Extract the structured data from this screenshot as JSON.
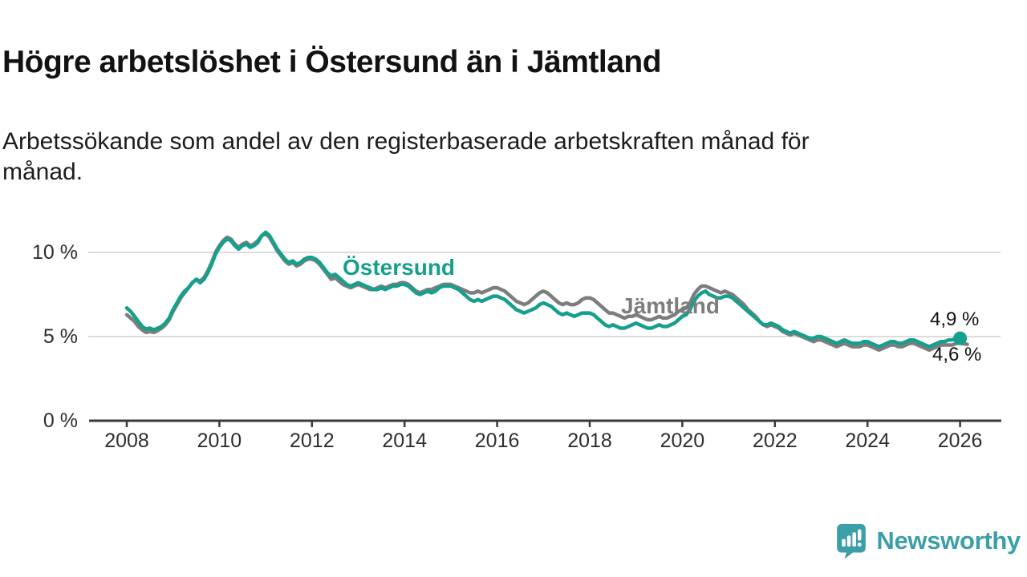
{
  "header": {
    "title": "Högre arbetslöshet i Östersund än i Jämtland",
    "subtitle": "Arbetssökande som andel av den registerbaserade arbetskraften månad för månad."
  },
  "chart_data": {
    "type": "line",
    "title": "Högre arbetslöshet i Östersund än i Jämtland",
    "subtitle": "Arbetssökande som andel av den registerbaserade arbetskraften månad för månad.",
    "frequency": "monthly",
    "x_start": "2008-01",
    "x_end": "2026-01",
    "x_ticks": [
      2008,
      2010,
      2012,
      2014,
      2016,
      2018,
      2020,
      2022,
      2024,
      2026
    ],
    "y_ticks": [
      {
        "value": 0,
        "label": "0 %"
      },
      {
        "value": 5,
        "label": "5 %"
      },
      {
        "value": 10,
        "label": "10 %"
      }
    ],
    "ylim": [
      0,
      12.5
    ],
    "grid": "horizontal",
    "colors": {
      "grid": "#dcdcdc",
      "axis": "#3a3a3a",
      "tick_text": "#2e2e2e"
    },
    "series": [
      {
        "name": "Jämtland",
        "color": "#7d7d7d",
        "end_dot": false,
        "last_value_label": "4,6 %",
        "values": [
          6.3,
          6.1,
          5.9,
          5.6,
          5.4,
          5.25,
          5.3,
          5.25,
          5.35,
          5.5,
          5.7,
          6.0,
          6.5,
          6.9,
          7.3,
          7.6,
          7.9,
          8.2,
          8.4,
          8.3,
          8.5,
          8.9,
          9.4,
          10.0,
          10.4,
          10.7,
          10.9,
          10.8,
          10.5,
          10.3,
          10.5,
          10.6,
          10.4,
          10.5,
          10.7,
          11.0,
          11.1,
          10.9,
          10.5,
          10.1,
          9.8,
          9.5,
          9.3,
          9.4,
          9.2,
          9.3,
          9.5,
          9.6,
          9.6,
          9.5,
          9.3,
          9.0,
          8.7,
          8.4,
          8.5,
          8.3,
          8.1,
          8.0,
          7.9,
          8.0,
          8.1,
          8.0,
          7.9,
          7.8,
          7.8,
          7.9,
          8.0,
          7.9,
          8.0,
          8.1,
          8.1,
          8.2,
          8.2,
          8.1,
          7.9,
          7.7,
          7.6,
          7.7,
          7.8,
          7.8,
          7.9,
          8.0,
          8.1,
          8.1,
          8.1,
          8.0,
          7.9,
          7.8,
          7.7,
          7.6,
          7.6,
          7.7,
          7.6,
          7.7,
          7.8,
          7.9,
          7.9,
          7.8,
          7.7,
          7.5,
          7.3,
          7.1,
          7.0,
          6.9,
          7.0,
          7.2,
          7.4,
          7.6,
          7.7,
          7.6,
          7.4,
          7.2,
          7.0,
          6.9,
          7.0,
          6.9,
          6.9,
          7.0,
          7.2,
          7.3,
          7.3,
          7.2,
          7.0,
          6.8,
          6.6,
          6.4,
          6.4,
          6.3,
          6.2,
          6.1,
          6.2,
          6.2,
          6.3,
          6.2,
          6.1,
          6.0,
          6.0,
          6.1,
          6.2,
          6.1,
          6.1,
          6.2,
          6.3,
          6.5,
          6.6,
          6.7,
          7.0,
          7.5,
          7.8,
          8.0,
          8.0,
          7.9,
          7.8,
          7.7,
          7.6,
          7.7,
          7.6,
          7.5,
          7.3,
          7.1,
          6.9,
          6.6,
          6.4,
          6.2,
          5.9,
          5.7,
          5.6,
          5.7,
          5.6,
          5.5,
          5.3,
          5.2,
          5.1,
          5.2,
          5.1,
          5.0,
          4.9,
          4.8,
          4.7,
          4.8,
          4.8,
          4.7,
          4.6,
          4.5,
          4.4,
          4.5,
          4.6,
          4.5,
          4.4,
          4.4,
          4.4,
          4.5,
          4.5,
          4.4,
          4.3,
          4.2,
          4.3,
          4.4,
          4.5,
          4.5,
          4.4,
          4.4,
          4.5,
          4.6,
          4.6,
          4.5,
          4.4,
          4.3,
          4.2,
          4.3,
          4.4,
          4.5,
          4.5,
          4.5,
          4.5,
          4.6,
          4.6
        ]
      },
      {
        "name": "Östersund",
        "color": "#14a08c",
        "end_dot": true,
        "last_value_label": "4,9 %",
        "values": [
          6.7,
          6.5,
          6.2,
          5.9,
          5.6,
          5.45,
          5.5,
          5.4,
          5.5,
          5.6,
          5.8,
          6.1,
          6.6,
          7.0,
          7.4,
          7.7,
          7.9,
          8.2,
          8.4,
          8.2,
          8.4,
          8.8,
          9.3,
          9.9,
          10.3,
          10.6,
          10.8,
          10.7,
          10.4,
          10.2,
          10.4,
          10.5,
          10.3,
          10.4,
          10.6,
          11.0,
          11.2,
          11.0,
          10.6,
          10.2,
          9.9,
          9.6,
          9.4,
          9.5,
          9.3,
          9.4,
          9.6,
          9.7,
          9.7,
          9.6,
          9.4,
          9.1,
          8.8,
          8.6,
          8.7,
          8.5,
          8.3,
          8.1,
          8.0,
          8.1,
          8.2,
          8.1,
          8.0,
          7.9,
          7.8,
          7.8,
          7.9,
          7.8,
          7.9,
          8.0,
          8.0,
          8.1,
          8.1,
          8.0,
          7.8,
          7.6,
          7.5,
          7.6,
          7.7,
          7.6,
          7.7,
          7.9,
          8.0,
          8.0,
          8.0,
          7.9,
          7.8,
          7.6,
          7.4,
          7.2,
          7.1,
          7.2,
          7.1,
          7.2,
          7.3,
          7.4,
          7.4,
          7.3,
          7.2,
          7.0,
          6.8,
          6.6,
          6.5,
          6.4,
          6.5,
          6.6,
          6.7,
          6.9,
          7.0,
          6.9,
          6.8,
          6.6,
          6.4,
          6.3,
          6.4,
          6.3,
          6.2,
          6.3,
          6.4,
          6.4,
          6.4,
          6.3,
          6.1,
          5.9,
          5.7,
          5.6,
          5.7,
          5.6,
          5.5,
          5.5,
          5.6,
          5.7,
          5.8,
          5.7,
          5.6,
          5.5,
          5.5,
          5.6,
          5.7,
          5.6,
          5.6,
          5.7,
          5.8,
          6.0,
          6.2,
          6.3,
          6.6,
          7.1,
          7.4,
          7.6,
          7.7,
          7.5,
          7.4,
          7.3,
          7.3,
          7.4,
          7.4,
          7.3,
          7.1,
          6.9,
          6.7,
          6.5,
          6.3,
          6.1,
          5.9,
          5.7,
          5.7,
          5.8,
          5.7,
          5.6,
          5.4,
          5.3,
          5.2,
          5.3,
          5.2,
          5.1,
          5.0,
          4.9,
          4.9,
          5.0,
          5.0,
          4.9,
          4.8,
          4.7,
          4.6,
          4.7,
          4.8,
          4.7,
          4.6,
          4.6,
          4.6,
          4.7,
          4.7,
          4.6,
          4.5,
          4.4,
          4.5,
          4.6,
          4.7,
          4.7,
          4.6,
          4.6,
          4.7,
          4.8,
          4.8,
          4.7,
          4.6,
          4.5,
          4.4,
          4.5,
          4.6,
          4.7,
          4.7,
          4.8,
          4.8,
          4.9,
          4.9
        ]
      }
    ],
    "annotations": {
      "ostersund_label": "Östersund",
      "jamtland_label": "Jämtland",
      "end_value_ostersund": "4,9 %",
      "end_value_jamtland": "4,6 %"
    }
  },
  "footer": {
    "brand": "Newsworthy",
    "brand_color": "#3a9fa6"
  }
}
